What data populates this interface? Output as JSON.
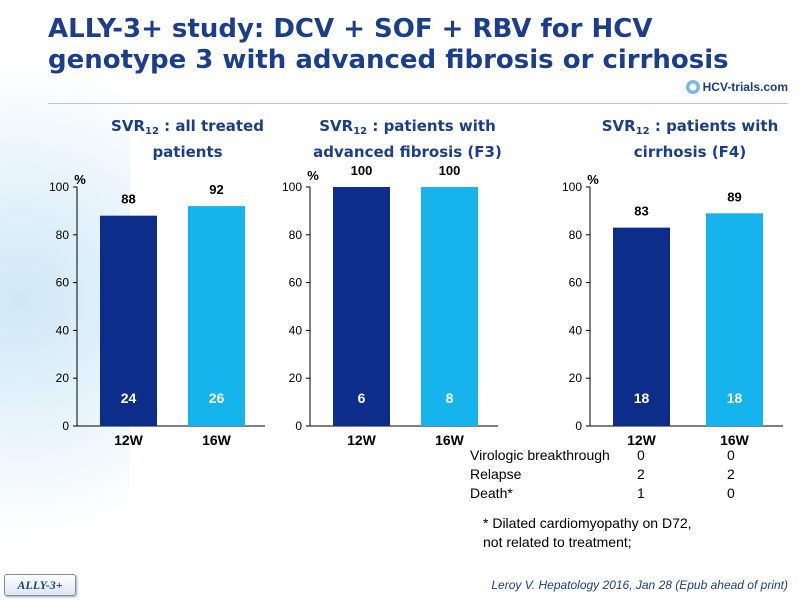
{
  "header": {
    "title_line1": "ALLY-3+ study: DCV + SOF + RBV for HCV",
    "title_line2": "genotype 3 with advanced fibrosis or cirrhosis",
    "logo_text": "HCV-trials.com"
  },
  "chart_data": [
    {
      "type": "bar",
      "title_main": "SVR",
      "title_sub": "12",
      "title_rest": " : all treated patients",
      "title_line2": "",
      "ylabel": "%",
      "ylim": [
        0,
        100
      ],
      "yticks": [
        "0",
        "20",
        "40",
        "60",
        "80",
        "100"
      ],
      "categories": [
        "12W",
        "16W"
      ],
      "values": [
        88,
        92
      ],
      "value_labels": [
        "88",
        "92"
      ],
      "n_labels": [
        "24",
        "26"
      ],
      "colors": [
        "#0d2d8a",
        "#16b4ec"
      ]
    },
    {
      "type": "bar",
      "title_main": "SVR",
      "title_sub": "12",
      "title_rest": " : patients with",
      "title_line2": "advanced fibrosis (F3)",
      "ylabel": "%",
      "ylim": [
        0,
        100
      ],
      "yticks": [
        "0",
        "20",
        "40",
        "60",
        "80",
        "100"
      ],
      "categories": [
        "12W",
        "16W"
      ],
      "values": [
        100,
        100
      ],
      "value_labels": [
        "100",
        "100"
      ],
      "n_labels": [
        "6",
        "8"
      ],
      "colors": [
        "#0d2d8a",
        "#16b4ec"
      ]
    },
    {
      "type": "bar",
      "title_main": "SVR",
      "title_sub": "12",
      "title_rest": " : patients with",
      "title_line2": "cirrhosis (F4)",
      "ylabel": "%",
      "ylim": [
        0,
        100
      ],
      "yticks": [
        "0",
        "20",
        "40",
        "60",
        "80",
        "100"
      ],
      "categories": [
        "12W",
        "16W"
      ],
      "values": [
        83,
        89
      ],
      "value_labels": [
        "83",
        "89"
      ],
      "n_labels": [
        "18",
        "18"
      ],
      "colors": [
        "#0d2d8a",
        "#16b4ec"
      ]
    }
  ],
  "outcomes": [
    {
      "label": "Virologic breakthrough",
      "w12": "0",
      "w16": "0"
    },
    {
      "label": "Relapse",
      "w12": "2",
      "w16": "2"
    },
    {
      "label": "Death*",
      "w12": "1",
      "w16": "0"
    }
  ],
  "footnote": {
    "line1": "* Dilated cardiomyopathy on D72,",
    "line2": "not related to treatment;"
  },
  "footer": {
    "study_tag": "ALLY-3+",
    "citation": "Leroy V. Hepatology 2016, Jan 28 (Epub ahead of print)"
  }
}
